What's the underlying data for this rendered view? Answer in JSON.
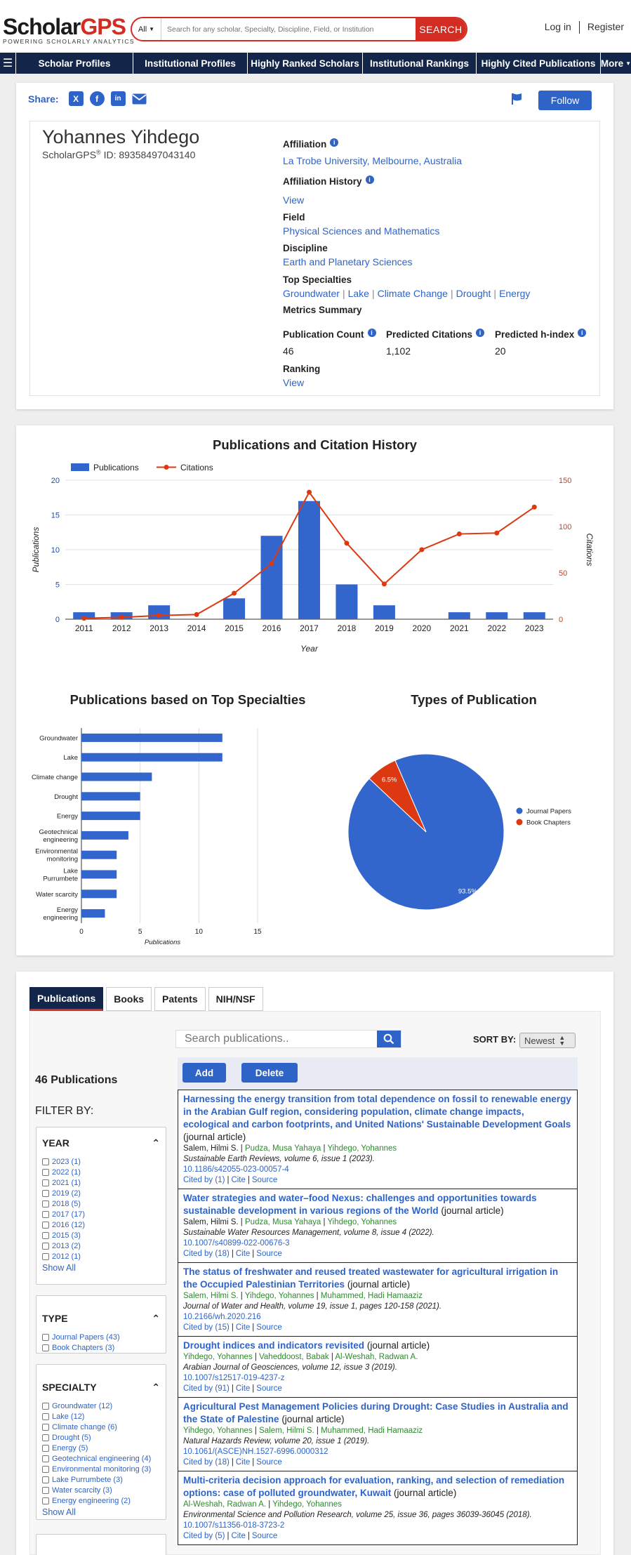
{
  "header": {
    "logo_a": "Scholar",
    "logo_b": "GPS",
    "logo_tagline": "POWERING SCHOLARLY ANALYTICS",
    "search_scope": "All",
    "search_placeholder": "Search for any scholar, Specialty, Discipline, Field, or Institution",
    "search_button": "SEARCH",
    "login": "Log in",
    "register": "Register"
  },
  "nav": {
    "items": [
      "Scholar Profiles",
      "Institutional Profiles",
      "Highly Ranked Scholars",
      "Institutional Rankings",
      "Highly Cited Publications",
      "More"
    ]
  },
  "profile": {
    "share_label": "Share:",
    "follow_label": "Follow",
    "name": "Yohannes Yihdego",
    "id_prefix": "ScholarGPS",
    "id_text": "ID: 89358497043140",
    "affiliation_label": "Affiliation",
    "affiliation_value": "La Trobe University, Melbourne, Australia",
    "affiliation_history_label": "Affiliation History",
    "affiliation_history_link": "View",
    "field_label": "Field",
    "field_value": "Physical Sciences and Mathematics",
    "discipline_label": "Discipline",
    "discipline_value": "Earth and Planetary Sciences",
    "specialties_label": "Top Specialties",
    "specialties": [
      "Groundwater",
      "Lake",
      "Climate Change",
      "Drought",
      "Energy"
    ],
    "metrics_label": "Metrics Summary",
    "metrics": [
      {
        "label": "Publication Count",
        "value": "46"
      },
      {
        "label": "Predicted Citations",
        "value": "1,102"
      },
      {
        "label": "Predicted h-index",
        "value": "20"
      }
    ],
    "ranking_label": "Ranking",
    "ranking_link": "View"
  },
  "chart_data": [
    {
      "type": "bar+line",
      "title": "Publications and Citation History",
      "categories": [
        "2011",
        "2012",
        "2013",
        "2014",
        "2015",
        "2016",
        "2017",
        "2018",
        "2019",
        "2020",
        "2021",
        "2022",
        "2023"
      ],
      "series": [
        {
          "name": "Publications",
          "type": "bar",
          "axis": "left",
          "color": "#3366cc",
          "values": [
            1,
            1,
            2,
            0,
            3,
            12,
            17,
            5,
            2,
            0,
            1,
            1,
            1
          ]
        },
        {
          "name": "Citations",
          "type": "line",
          "axis": "right",
          "color": "#dc3912",
          "values": [
            1,
            2,
            4,
            5,
            28,
            60,
            137,
            82,
            38,
            75,
            92,
            93,
            121
          ]
        }
      ],
      "xlabel": "Year",
      "ylabel_left": "Publications",
      "ylabel_right": "Citations",
      "ylim_left": [
        0,
        20
      ],
      "yticks_left": [
        "0",
        "5",
        "10",
        "15",
        "20"
      ],
      "ylim_right": [
        0,
        150
      ],
      "yticks_right": [
        "0",
        "50",
        "100",
        "150"
      ]
    },
    {
      "type": "bar",
      "orientation": "horizontal",
      "title": "Publications based on Top Specialties",
      "categories": [
        "Groundwater",
        "Lake",
        "Climate change",
        "Drought",
        "Energy",
        "Geotechnical engineering",
        "Environmental monitoring",
        "Lake Purrumbete",
        "Water scarcity",
        "Energy engineering"
      ],
      "category_lines": [
        [
          "Groundwater"
        ],
        [
          "Lake"
        ],
        [
          "Climate change"
        ],
        [
          "Drought"
        ],
        [
          "Energy"
        ],
        [
          "Geotechnical",
          "engineering"
        ],
        [
          "Environmental",
          "monitoring"
        ],
        [
          "Lake",
          "Purrumbete"
        ],
        [
          "Water scarcity"
        ],
        [
          "Energy",
          "engineering"
        ]
      ],
      "values": [
        12,
        12,
        6,
        5,
        5,
        4,
        3,
        3,
        3,
        2
      ],
      "xlabel": "Publications",
      "xlim": [
        0,
        15
      ],
      "xticks": [
        "0",
        "5",
        "10",
        "15"
      ],
      "color": "#3366cc"
    },
    {
      "type": "pie",
      "title": "Types of Publication",
      "labels": [
        "Journal Papers",
        "Book Chapters"
      ],
      "values": [
        93.5,
        6.5
      ],
      "value_labels": [
        "93.5%",
        "6.5%"
      ],
      "colors": [
        "#3366cc",
        "#dc3912"
      ],
      "legend": "right"
    }
  ],
  "publications": {
    "tabs": [
      "Publications",
      "Books",
      "Patents",
      "NIH/NSF"
    ],
    "count_label": "46 Publications",
    "filter_by": "FILTER BY:",
    "search_placeholder": "Search publications..",
    "sort_label": "SORT BY:",
    "sort_value": "Newest",
    "add_label": "Add",
    "delete_label": "Delete",
    "filters": {
      "year": {
        "title": "YEAR",
        "items": [
          "2023 (1)",
          "2022 (1)",
          "2021 (1)",
          "2019 (2)",
          "2018 (5)",
          "2017 (17)",
          "2016 (12)",
          "2015 (3)",
          "2013 (2)",
          "2012 (1)"
        ],
        "show_all": "Show All"
      },
      "type": {
        "title": "TYPE",
        "items": [
          "Journal Papers (43)",
          "Book Chapters (3)"
        ]
      },
      "specialty": {
        "title": "SPECIALTY",
        "items": [
          "Groundwater (12)",
          "Lake (12)",
          "Climate change (6)",
          "Drought (5)",
          "Energy (5)",
          "Geotechnical engineering (4)",
          "Environmental monitoring (3)",
          "Lake Purrumbete (3)",
          "Water scarcity (3)",
          "Energy engineering (2)"
        ],
        "show_all": "Show All"
      }
    },
    "items": [
      {
        "title": "Harnessing the energy transition from total dependence on fossil to renewable energy in the Arabian Gulf region, considering population, climate change impacts, ecological and carbon footprints, and United Nations' Sustainable Development Goals",
        "type": "(journal article)",
        "authors": [
          [
            "Salem, Hilmi S.",
            false
          ],
          [
            "Pudza, Musa Yahaya",
            true
          ],
          [
            "Yihdego, Yohannes",
            true
          ]
        ],
        "venue": "Sustainable Earth Reviews, volume 6, issue 1 (2023).",
        "doi": "10.1186/s42055-023-00057-4",
        "cited": "Cited by (1)",
        "cite": "Cite",
        "source": "Source"
      },
      {
        "title": "Water strategies and water–food Nexus: challenges and opportunities towards sustainable development in various regions of the World",
        "type": "(journal article)",
        "authors": [
          [
            "Salem, Hilmi S.",
            false
          ],
          [
            "Pudza, Musa Yahaya",
            true
          ],
          [
            "Yihdego, Yohannes",
            true
          ]
        ],
        "venue": "Sustainable Water Resources Management, volume 8, issue 4 (2022).",
        "doi": "10.1007/s40899-022-00676-3",
        "cited": "Cited by (18)",
        "cite": "Cite",
        "source": "Source"
      },
      {
        "title": "The status of freshwater and reused treated wastewater for agricultural irrigation in the Occupied Palestinian Territories",
        "type": "(journal article)",
        "authors": [
          [
            "Salem, Hilmi S.",
            true
          ],
          [
            "Yihdego, Yohannes",
            true
          ],
          [
            "Muhammed, Hadi Hamaaziz",
            true
          ]
        ],
        "venue": "Journal of Water and Health, volume 19, issue 1, pages 120-158 (2021).",
        "doi": "10.2166/wh.2020.216",
        "cited": "Cited by (15)",
        "cite": "Cite",
        "source": "Source"
      },
      {
        "title": "Drought indices and indicators revisited",
        "type": "(journal article)",
        "authors": [
          [
            "Yihdego, Yohannes",
            true
          ],
          [
            "Vaheddoost, Babak",
            true
          ],
          [
            "Al-Weshah, Radwan A.",
            true
          ]
        ],
        "venue": "Arabian Journal of Geosciences, volume 12, issue 3 (2019).",
        "doi": "10.1007/s12517-019-4237-z",
        "cited": "Cited by (91)",
        "cite": "Cite",
        "source": "Source"
      },
      {
        "title": "Agricultural Pest Management Policies during Drought: Case Studies in Australia and the State of Palestine",
        "type": "(journal article)",
        "authors": [
          [
            "Yihdego, Yohannes",
            true
          ],
          [
            "Salem, Hilmi S.",
            true
          ],
          [
            "Muhammed, Hadi Hamaaziz",
            true
          ]
        ],
        "venue": "Natural Hazards Review, volume 20, issue 1 (2019).",
        "doi": "10.1061/(ASCE)NH.1527-6996.0000312",
        "cited": "Cited by (18)",
        "cite": "Cite",
        "source": "Source"
      },
      {
        "title": "Multi-criteria decision approach for evaluation, ranking, and selection of remediation options: case of polluted groundwater, Kuwait",
        "type": "(journal article)",
        "authors": [
          [
            "Al-Weshah, Radwan A.",
            true
          ],
          [
            "Yihdego, Yohannes",
            true
          ]
        ],
        "venue": "Environmental Science and Pollution Research, volume 25, issue 36, pages 36039-36045 (2018).",
        "doi": "10.1007/s11356-018-3723-2",
        "cited": "Cited by (5)",
        "cite": "Cite",
        "source": "Source"
      }
    ]
  }
}
